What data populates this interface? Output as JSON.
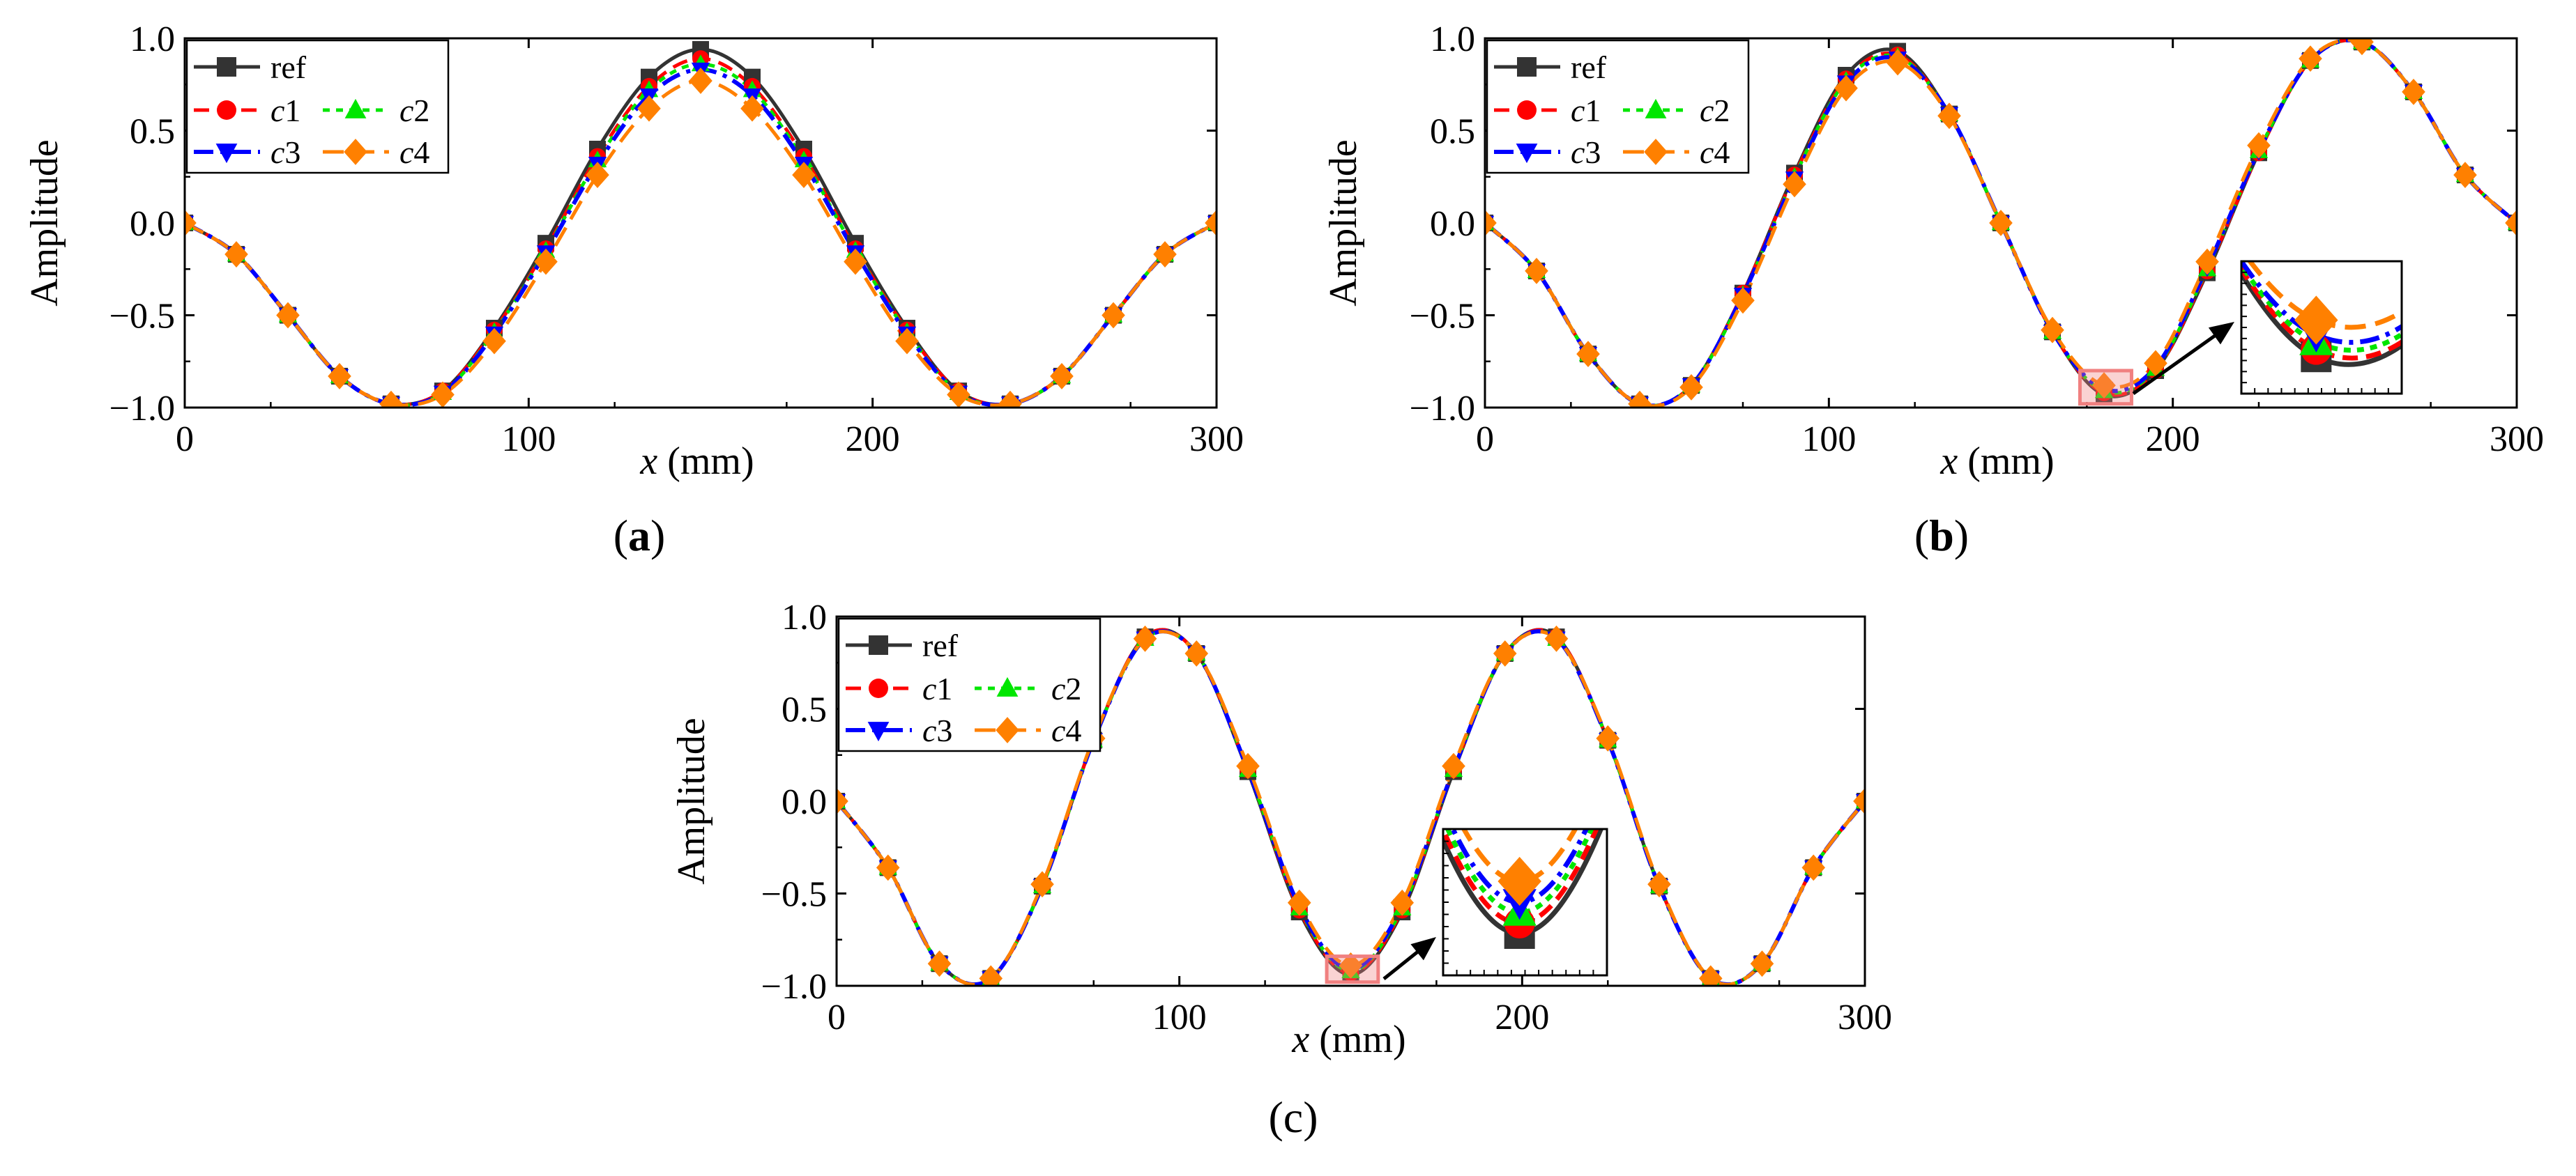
{
  "colors": {
    "ref": "#333333",
    "c1": "#ff0000",
    "c2": "#00e600",
    "c3": "#0000ff",
    "c4": "#ff8000",
    "highlight": "#f08080"
  },
  "chart_data": [
    {
      "type": "line",
      "panel_label": "(a)",
      "xlabel_var": "x",
      "xlabel_unit": "(mm)",
      "ylabel": "Amplitude",
      "xlim": [
        0,
        300
      ],
      "ylim": [
        -1.0,
        1.0
      ],
      "xticks": [
        0,
        100,
        200,
        300
      ],
      "xtick_labels": [
        "0",
        "100",
        "200",
        "300"
      ],
      "yticks": [
        -1.0,
        -0.5,
        0.0,
        0.5,
        1.0
      ],
      "ytick_labels": [
        "−1.0",
        "−0.5",
        "0.0",
        "0.5",
        "1.0"
      ],
      "legend": {
        "placement": "top-left",
        "entries": [
          "ref",
          "c1",
          "c2",
          "c3",
          "c4"
        ]
      },
      "markers_x": [
        0,
        15,
        30,
        45,
        60,
        75,
        90,
        105,
        120,
        135,
        150,
        165,
        180,
        195,
        210,
        225,
        240,
        255,
        270,
        285,
        300
      ],
      "series": [
        {
          "name": "ref",
          "values": [
            0,
            -0.17,
            -0.5,
            -0.83,
            -0.98,
            -0.91,
            -0.57,
            -0.11,
            0.4,
            0.79,
            0.94,
            0.79,
            0.4,
            -0.11,
            -0.57,
            -0.91,
            -0.98,
            -0.83,
            -0.5,
            -0.17,
            0
          ]
        },
        {
          "name": "c1",
          "values": [
            0,
            -0.17,
            -0.5,
            -0.83,
            -0.98,
            -0.91,
            -0.58,
            -0.14,
            0.36,
            0.74,
            0.89,
            0.74,
            0.36,
            -0.14,
            -0.58,
            -0.91,
            -0.98,
            -0.83,
            -0.5,
            -0.17,
            0
          ]
        },
        {
          "name": "c2",
          "values": [
            0,
            -0.17,
            -0.5,
            -0.83,
            -0.98,
            -0.92,
            -0.59,
            -0.15,
            0.34,
            0.72,
            0.86,
            0.72,
            0.34,
            -0.15,
            -0.59,
            -0.92,
            -0.98,
            -0.83,
            -0.5,
            -0.17,
            0
          ]
        },
        {
          "name": "c3",
          "values": [
            0,
            -0.17,
            -0.5,
            -0.83,
            -0.98,
            -0.92,
            -0.6,
            -0.16,
            0.32,
            0.69,
            0.83,
            0.69,
            0.32,
            -0.16,
            -0.6,
            -0.92,
            -0.98,
            -0.83,
            -0.5,
            -0.17,
            0
          ]
        },
        {
          "name": "c4",
          "values": [
            0,
            -0.17,
            -0.5,
            -0.83,
            -0.98,
            -0.93,
            -0.64,
            -0.21,
            0.26,
            0.62,
            0.77,
            0.62,
            0.26,
            -0.21,
            -0.64,
            -0.93,
            -0.98,
            -0.83,
            -0.5,
            -0.17,
            0
          ]
        }
      ]
    },
    {
      "type": "line",
      "panel_label": "(b)",
      "xlabel_var": "x",
      "xlabel_unit": "(mm)",
      "ylabel": "Amplitude",
      "xlim": [
        0,
        300
      ],
      "ylim": [
        -1.0,
        1.0
      ],
      "xticks": [
        0,
        100,
        200,
        300
      ],
      "xtick_labels": [
        "0",
        "100",
        "200",
        "300"
      ],
      "yticks": [
        -1.0,
        -0.5,
        0.0,
        0.5,
        1.0
      ],
      "ytick_labels": [
        "−1.0",
        "−0.5",
        "0.0",
        "0.5",
        "1.0"
      ],
      "legend": {
        "placement": "top-left",
        "entries": [
          "ref",
          "c1",
          "c2",
          "c3",
          "c4"
        ]
      },
      "markers_x": [
        0,
        15,
        30,
        45,
        60,
        75,
        90,
        105,
        120,
        135,
        150,
        165,
        180,
        195,
        210,
        225,
        240,
        255,
        270,
        285,
        300
      ],
      "inset": {
        "x_range": [
          173,
          188
        ],
        "y_range": [
          -0.98,
          -0.8
        ],
        "placement": "right"
      },
      "series": [
        {
          "name": "ref",
          "values": [
            0,
            -0.26,
            -0.71,
            -0.98,
            -0.88,
            -0.38,
            0.27,
            0.8,
            0.93,
            0.59,
            0.0,
            -0.59,
            -0.93,
            -0.8,
            -0.27,
            0.38,
            0.88,
            0.98,
            0.71,
            0.26,
            0
          ]
        },
        {
          "name": "c1",
          "values": [
            0,
            -0.26,
            -0.71,
            -0.98,
            -0.88,
            -0.38,
            0.26,
            0.78,
            0.91,
            0.59,
            0.0,
            -0.59,
            -0.92,
            -0.8,
            -0.26,
            0.38,
            0.88,
            0.98,
            0.71,
            0.26,
            0
          ]
        },
        {
          "name": "c2",
          "values": [
            0,
            -0.26,
            -0.71,
            -0.98,
            -0.88,
            -0.39,
            0.25,
            0.77,
            0.9,
            0.59,
            0.0,
            -0.59,
            -0.91,
            -0.79,
            -0.25,
            0.39,
            0.88,
            0.98,
            0.71,
            0.26,
            0
          ]
        },
        {
          "name": "c3",
          "values": [
            0,
            -0.26,
            -0.71,
            -0.98,
            -0.88,
            -0.39,
            0.24,
            0.76,
            0.89,
            0.59,
            0.0,
            -0.59,
            -0.9,
            -0.78,
            -0.24,
            0.39,
            0.88,
            0.98,
            0.71,
            0.26,
            0
          ]
        },
        {
          "name": "c4",
          "values": [
            0,
            -0.26,
            -0.71,
            -0.98,
            -0.89,
            -0.42,
            0.21,
            0.73,
            0.87,
            0.58,
            0.0,
            -0.58,
            -0.88,
            -0.76,
            -0.21,
            0.42,
            0.89,
            0.98,
            0.71,
            0.26,
            0
          ]
        }
      ]
    },
    {
      "type": "line",
      "panel_label": "(c)",
      "xlabel_var": "x",
      "xlabel_unit": "(mm)",
      "ylabel": "Amplitude",
      "xlim": [
        0,
        300
      ],
      "ylim": [
        -1.0,
        1.0
      ],
      "xticks": [
        0,
        100,
        200,
        300
      ],
      "xtick_labels": [
        "0",
        "100",
        "200",
        "300"
      ],
      "yticks": [
        -1.0,
        -0.5,
        0.0,
        0.5,
        1.0
      ],
      "ytick_labels": [
        "−1.0",
        "−0.5",
        "0.0",
        "0.5",
        "1.0"
      ],
      "legend": {
        "placement": "top-left",
        "entries": [
          "ref",
          "c1",
          "c2",
          "c3",
          "c4"
        ]
      },
      "markers_x": [
        0,
        15,
        30,
        45,
        60,
        75,
        90,
        105,
        120,
        135,
        150,
        165,
        180,
        195,
        210,
        225,
        240,
        255,
        270,
        285,
        300
      ],
      "inset": {
        "x_range": [
          143,
          158
        ],
        "y_range": [
          -0.98,
          -0.84
        ],
        "placement": "center"
      },
      "series": [
        {
          "name": "ref",
          "values": [
            0,
            -0.36,
            -0.88,
            -0.96,
            -0.46,
            0.33,
            0.89,
            0.8,
            0.16,
            -0.6,
            -0.94,
            -0.6,
            0.16,
            0.8,
            0.89,
            0.33,
            -0.46,
            -0.96,
            -0.88,
            -0.36,
            0
          ]
        },
        {
          "name": "c1",
          "values": [
            0,
            -0.36,
            -0.88,
            -0.96,
            -0.46,
            0.33,
            0.89,
            0.8,
            0.17,
            -0.59,
            -0.93,
            -0.59,
            0.17,
            0.8,
            0.89,
            0.33,
            -0.46,
            -0.96,
            -0.88,
            -0.36,
            0
          ]
        },
        {
          "name": "c2",
          "values": [
            0,
            -0.36,
            -0.88,
            -0.96,
            -0.46,
            0.33,
            0.88,
            0.8,
            0.17,
            -0.58,
            -0.92,
            -0.58,
            0.17,
            0.8,
            0.88,
            0.33,
            -0.46,
            -0.96,
            -0.88,
            -0.36,
            0
          ]
        },
        {
          "name": "c3",
          "values": [
            0,
            -0.36,
            -0.88,
            -0.96,
            -0.46,
            0.33,
            0.88,
            0.8,
            0.17,
            -0.57,
            -0.91,
            -0.57,
            0.17,
            0.8,
            0.88,
            0.33,
            -0.46,
            -0.96,
            -0.88,
            -0.36,
            0
          ]
        },
        {
          "name": "c4",
          "values": [
            0,
            -0.36,
            -0.88,
            -0.96,
            -0.45,
            0.34,
            0.88,
            0.8,
            0.19,
            -0.55,
            -0.89,
            -0.55,
            0.19,
            0.8,
            0.88,
            0.34,
            -0.45,
            -0.96,
            -0.88,
            -0.36,
            0
          ]
        }
      ]
    }
  ]
}
